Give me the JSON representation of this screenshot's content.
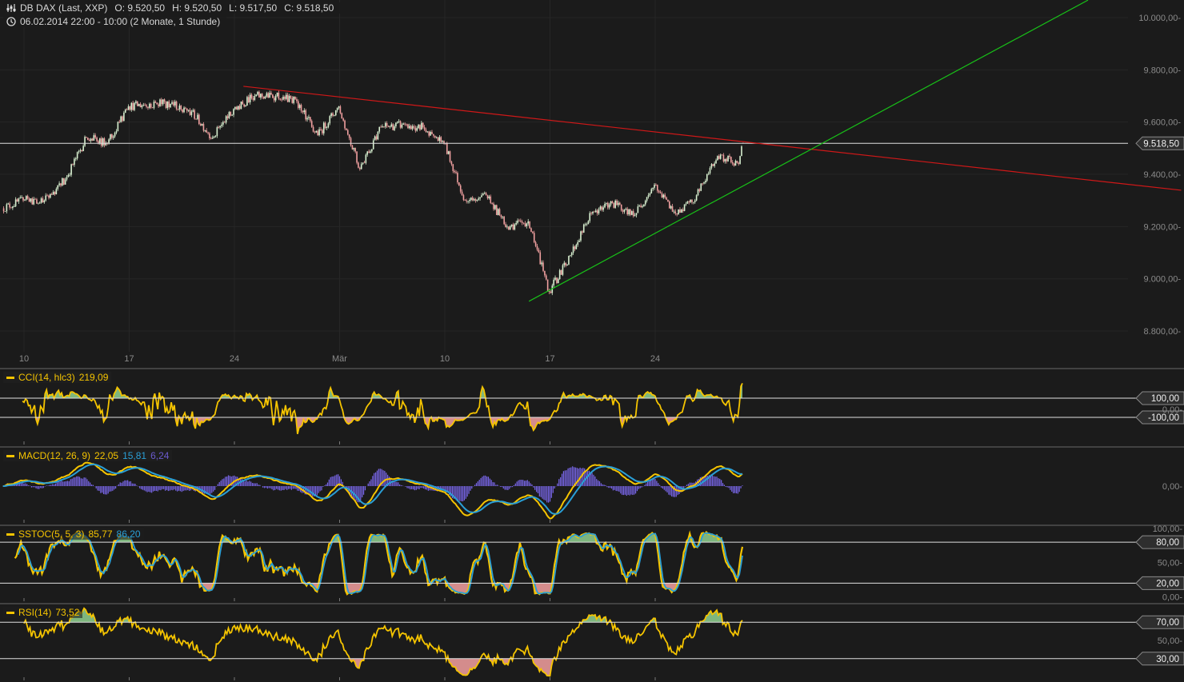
{
  "header": {
    "instrument": "DB DAX (Last, XXP)",
    "open": "O: 9.520,50",
    "high": "H: 9.520,50",
    "low": "L: 9.517,50",
    "close": "C: 9.518,50",
    "period": "06.02.2014 22:00 - 10:00 (2 Monate, 1 Stunde)",
    "icons": [
      "candles-icon",
      "clock-icon"
    ]
  },
  "colors": {
    "background": "#1b1b1b",
    "grid": "#262626",
    "candle_up": "#d8f0d0",
    "candle_down": "#f0a0a0",
    "resistance_line": "#d01818",
    "support_line": "#18c018",
    "indicator_main": "#f5c400",
    "indicator_signal": "#2a9fd6",
    "histogram": "#7b68ee",
    "fill_high": "#8fd18f",
    "fill_low": "#f4a0a0"
  },
  "chart_data": {
    "type": "candlestick",
    "interval": "1 hour",
    "x_ticks": [
      "10",
      "17",
      "24",
      "Mär",
      "10",
      "17",
      "24"
    ],
    "x_tick_dates": [
      "2014-02-10",
      "2014-02-17",
      "2014-02-24",
      "2014-03-03",
      "2014-03-10",
      "2014-03-17",
      "2014-03-24"
    ],
    "y_ticks": [
      "10.000,00",
      "9.800,00",
      "9.600,00",
      "9.400,00",
      "9.200,00",
      "9.000,00",
      "8.800,00"
    ],
    "y_tick_values": [
      10000,
      9800,
      9600,
      9400,
      9200,
      9000,
      8800
    ],
    "ylim": [
      8770,
      10070
    ],
    "grid": true,
    "daily_closes": {
      "dates": [
        "2014-02-07",
        "2014-02-10",
        "2014-02-11",
        "2014-02-12",
        "2014-02-13",
        "2014-02-14",
        "2014-02-17",
        "2014-02-18",
        "2014-02-19",
        "2014-02-20",
        "2014-02-21",
        "2014-02-24",
        "2014-02-25",
        "2014-02-26",
        "2014-02-27",
        "2014-02-28",
        "2014-03-03",
        "2014-03-04",
        "2014-03-05",
        "2014-03-06",
        "2014-03-07",
        "2014-03-10",
        "2014-03-11",
        "2014-03-12",
        "2014-03-13",
        "2014-03-14",
        "2014-03-17",
        "2014-03-18",
        "2014-03-19",
        "2014-03-20",
        "2014-03-21",
        "2014-03-24",
        "2014-03-25",
        "2014-03-26",
        "2014-03-27",
        "2014-03-28"
      ],
      "close": [
        9300,
        9300,
        9380,
        9540,
        9520,
        9660,
        9670,
        9670,
        9640,
        9540,
        9650,
        9700,
        9700,
        9680,
        9550,
        9660,
        9420,
        9580,
        9590,
        9580,
        9520,
        9300,
        9320,
        9200,
        9220,
        8950,
        9090,
        9250,
        9290,
        9240,
        9360,
        9250,
        9320,
        9470,
        9440,
        9518.5
      ]
    },
    "last_bar": {
      "open": 9520.5,
      "high": 9520.5,
      "low": 9517.5,
      "close": 9518.5
    },
    "last_price": 9518.5,
    "last_price_label": "9.518,50",
    "trendlines": [
      {
        "kind": "resistance",
        "color": "#d01818",
        "start": [
          "2014-02-24 14:00",
          9737
        ],
        "end": [
          "2014-04-28 08:00",
          9339
        ]
      },
      {
        "kind": "support",
        "color": "#18c018",
        "start": [
          "2014-03-14 08:00",
          8914
        ],
        "end": [
          "2014-04-21 16:00",
          10067
        ]
      }
    ],
    "indicators": [
      {
        "id": "cci",
        "label": "CCI(14, hlc3)",
        "values": [
          "219,09"
        ],
        "levels": [
          100,
          -100
        ],
        "level_labels": [
          "100,00",
          "-100,00"
        ],
        "axis_labels": [
          "0,00-"
        ],
        "ylim": [
          -400,
          400
        ]
      },
      {
        "id": "macd",
        "label": "MACD(12, 26, 9)",
        "values": [
          "22,05",
          "15,81",
          "6,24"
        ],
        "levels": [],
        "axis_labels": [
          "0,00-"
        ],
        "ylim": [
          -85,
          85
        ]
      },
      {
        "id": "sstoc",
        "label": "SSTOC(5, 5, 3)",
        "values": [
          "85,77",
          "86,20"
        ],
        "levels": [
          80,
          20
        ],
        "level_labels": [
          "80,00",
          "20,00"
        ],
        "axis_labels": [
          "100,00-",
          "50,00-",
          "0,00-"
        ],
        "ylim": [
          -3,
          100
        ]
      },
      {
        "id": "rsi",
        "label": "RSI(14)",
        "values": [
          "73,52"
        ],
        "levels": [
          70,
          30
        ],
        "level_labels": [
          "70,00",
          "30,00"
        ],
        "axis_labels": [
          "50,00-"
        ],
        "ylim": [
          0,
          100
        ]
      }
    ]
  }
}
